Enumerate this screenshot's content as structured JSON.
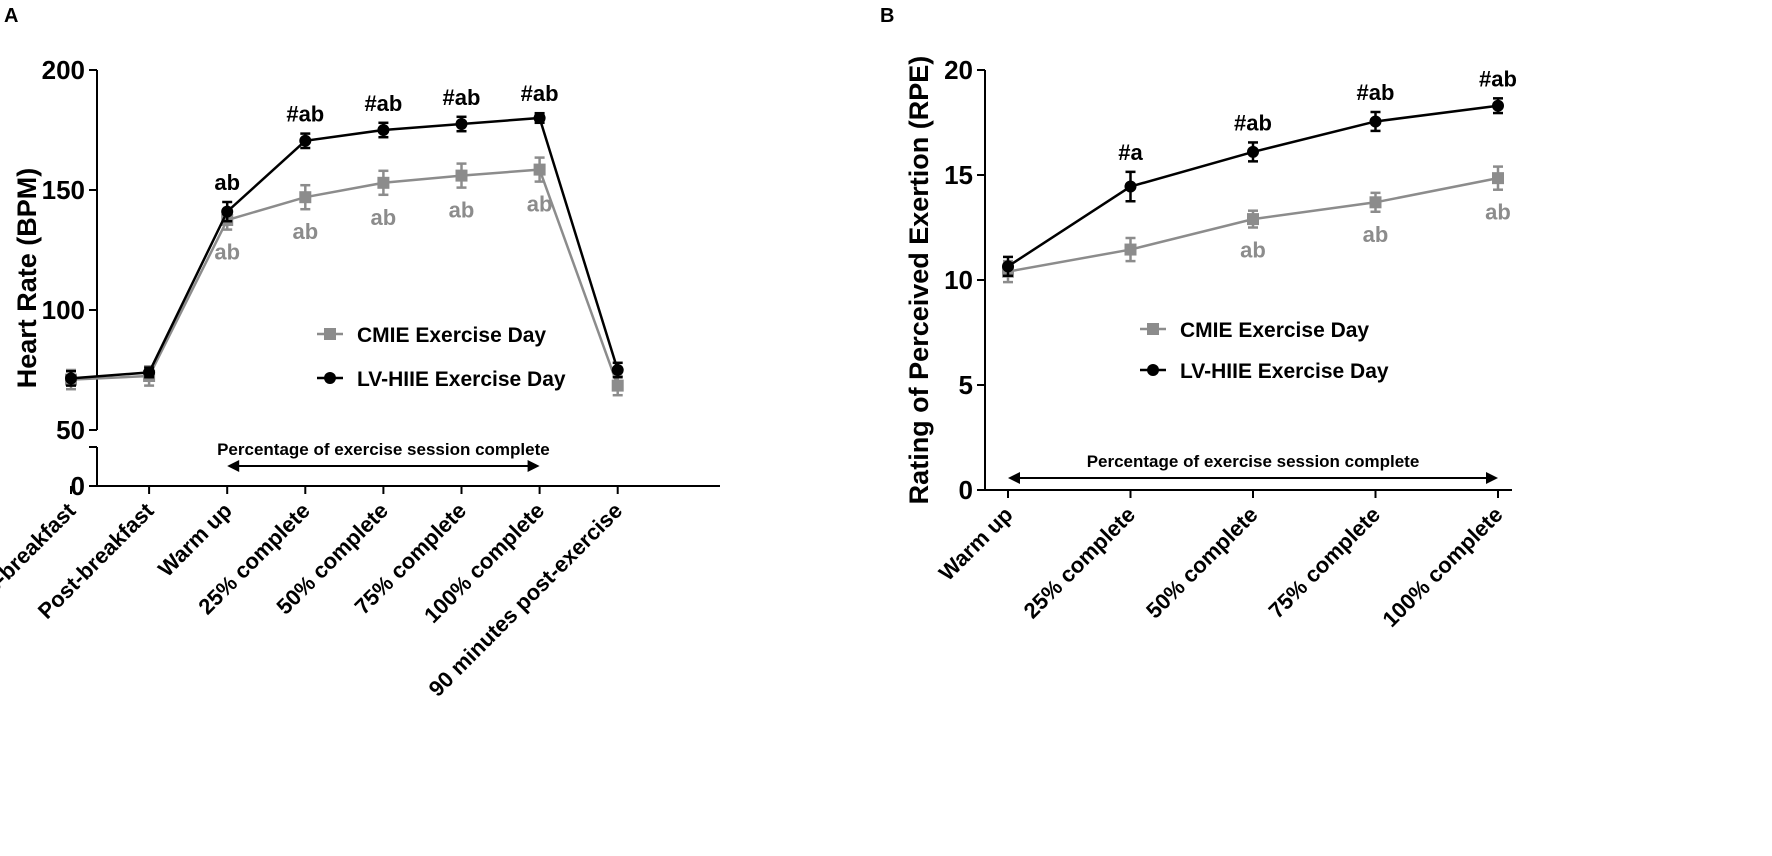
{
  "chart_data": [
    {
      "panel": "A",
      "type": "line",
      "title": "",
      "xlabel": "",
      "ylabel": "Heart Rate (BPM)",
      "ylim": [
        0,
        200
      ],
      "yaxis_break": [
        10,
        50
      ],
      "yticks": [
        0,
        50,
        100,
        150,
        200
      ],
      "grid": false,
      "legend_position": "center",
      "categories": [
        "Pre-breakfast",
        "Post-breakfast",
        "Warm up",
        "25% complete",
        "50% complete",
        "75% complete",
        "100% complete",
        "90 minutes post-exercise"
      ],
      "bracket_label": "Percentage of exercise session complete",
      "bracket_range": [
        "Warm up",
        "100% complete"
      ],
      "series": [
        {
          "name": "CMIE Exercise Day",
          "color": "#8c8c8c",
          "marker": "square",
          "values": [
            71,
            72.5,
            137.5,
            147,
            153,
            156,
            158.5,
            68.5
          ],
          "errors": [
            4,
            4,
            4,
            5,
            5,
            5,
            5,
            4
          ],
          "annotations": [
            null,
            null,
            "ab",
            "ab",
            "ab",
            "ab",
            "ab",
            null
          ]
        },
        {
          "name": "LV-HIIE Exercise Day",
          "color": "#000000",
          "marker": "circle",
          "values": [
            71.5,
            74,
            141,
            170.5,
            175,
            177.5,
            180,
            75
          ],
          "errors": [
            3,
            2,
            4,
            3,
            3,
            3,
            2,
            3
          ],
          "annotations": [
            null,
            null,
            "ab",
            "#ab",
            "#ab",
            "#ab",
            "#ab",
            null
          ]
        }
      ]
    },
    {
      "panel": "B",
      "type": "line",
      "title": "",
      "xlabel": "",
      "ylabel": "Rating of Perceived Exertion (RPE)",
      "ylim": [
        0,
        20
      ],
      "yticks": [
        0,
        5,
        10,
        15,
        20
      ],
      "grid": false,
      "legend_position": "center",
      "categories": [
        "Warm up",
        "25% complete",
        "50% complete",
        "75% complete",
        "100% complete"
      ],
      "bracket_label": "Percentage of exercise session complete",
      "bracket_range": [
        "Warm up",
        "100% complete"
      ],
      "series": [
        {
          "name": "CMIE Exercise Day",
          "color": "#8c8c8c",
          "marker": "square",
          "values": [
            10.4,
            11.45,
            12.9,
            13.7,
            14.85
          ],
          "errors": [
            0.5,
            0.55,
            0.4,
            0.45,
            0.55
          ],
          "annotations": [
            null,
            null,
            "ab",
            "ab",
            "ab"
          ]
        },
        {
          "name": "LV-HIIE Exercise Day",
          "color": "#000000",
          "marker": "circle",
          "values": [
            10.65,
            14.45,
            16.1,
            17.55,
            18.3
          ],
          "errors": [
            0.45,
            0.7,
            0.45,
            0.45,
            0.35
          ],
          "annotations": [
            null,
            "#a",
            "#ab",
            "#ab",
            "#ab"
          ]
        }
      ]
    }
  ]
}
